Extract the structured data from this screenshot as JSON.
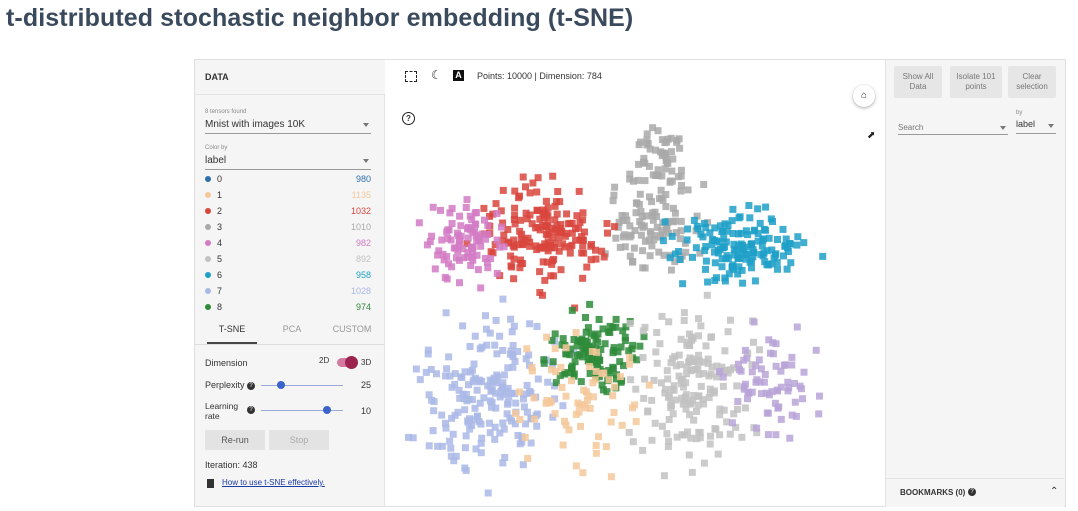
{
  "slide_title": "t-distributed stochastic neighbor embedding (t-SNE)",
  "left": {
    "header": "DATA",
    "tensors_found": "8 tensors found",
    "tensor_value": "Mnist with images 10K",
    "color_by_label": "Color by",
    "color_by_value": "label",
    "legend": [
      {
        "label": "0",
        "count": "980",
        "color": "#2f6fb0"
      },
      {
        "label": "1",
        "count": "1135",
        "color": "#f5c89a"
      },
      {
        "label": "2",
        "count": "1032",
        "color": "#d8453d"
      },
      {
        "label": "3",
        "count": "1010",
        "color": "#a9a9a9"
      },
      {
        "label": "4",
        "count": "982",
        "color": "#d27bc4"
      },
      {
        "label": "5",
        "count": "892",
        "color": "#c2c2c2"
      },
      {
        "label": "6",
        "count": "958",
        "color": "#1fa0c8"
      },
      {
        "label": "7",
        "count": "1028",
        "color": "#aab8e6"
      },
      {
        "label": "8",
        "count": "974",
        "color": "#2e8b3a"
      }
    ],
    "tabs": [
      "T-SNE",
      "PCA",
      "CUSTOM"
    ],
    "dimension_label": "Dimension",
    "dim_2d": "2D",
    "dim_3d": "3D",
    "perplexity_label": "Perplexity",
    "perplexity_value": "25",
    "learning_rate_label_1": "Learning",
    "learning_rate_label_2": "rate",
    "learning_rate_value": "10",
    "rerun": "Re-run",
    "stop": "Stop",
    "iteration": "Iteration: 438",
    "howto": "How to use t-SNE effectively."
  },
  "center": {
    "status": "Points: 10000 | Dimension: 784",
    "help": "?",
    "home_icon": "home-icon"
  },
  "right": {
    "show_all_1": "Show All",
    "show_all_2": "Data",
    "isolate_1": "Isolate 101",
    "isolate_2": "points",
    "clear_1": "Clear",
    "clear_2": "selection",
    "search_placeholder": "Search",
    "by_label": "by",
    "by_value": "label",
    "bookmarks": "BOOKMARKS (0)"
  }
}
